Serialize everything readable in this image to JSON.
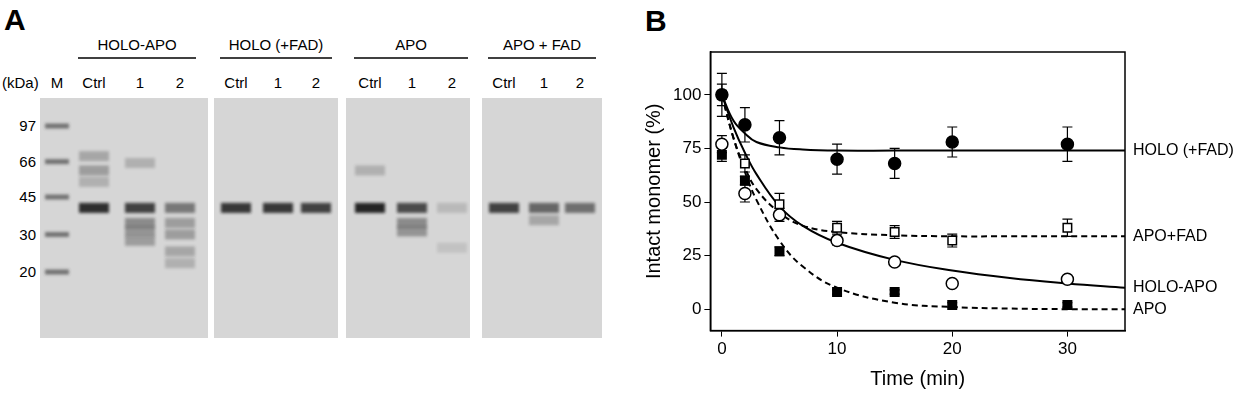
{
  "panel_a": {
    "label": "A",
    "unit_label": "(kDa)",
    "marker_label": "M",
    "marker_kda": [
      97,
      66,
      45,
      30,
      20
    ],
    "gels": [
      {
        "title": "HOLO-APO",
        "lanes": [
          {
            "name": "Ctrl",
            "bands": [
              {
                "kda": 40,
                "intensity": 0.9
              },
              {
                "kda": 70,
                "intensity": 0.25
              },
              {
                "kda": 60,
                "intensity": 0.3
              },
              {
                "kda": 53,
                "intensity": 0.2
              }
            ]
          },
          {
            "name": "1",
            "bands": [
              {
                "kda": 40,
                "intensity": 0.8
              },
              {
                "kda": 34,
                "intensity": 0.4
              },
              {
                "kda": 31,
                "intensity": 0.35
              },
              {
                "kda": 28,
                "intensity": 0.3
              },
              {
                "kda": 65,
                "intensity": 0.2
              }
            ]
          },
          {
            "name": "2",
            "bands": [
              {
                "kda": 40,
                "intensity": 0.5
              },
              {
                "kda": 34,
                "intensity": 0.3
              },
              {
                "kda": 30,
                "intensity": 0.3
              },
              {
                "kda": 25,
                "intensity": 0.25
              },
              {
                "kda": 22,
                "intensity": 0.2
              }
            ]
          }
        ]
      },
      {
        "title": "HOLO (+FAD)",
        "lanes": [
          {
            "name": "Ctrl",
            "bands": [
              {
                "kda": 40,
                "intensity": 0.85
              }
            ]
          },
          {
            "name": "1",
            "bands": [
              {
                "kda": 40,
                "intensity": 0.85
              }
            ]
          },
          {
            "name": "2",
            "bands": [
              {
                "kda": 40,
                "intensity": 0.8
              }
            ]
          }
        ]
      },
      {
        "title": "APO",
        "lanes": [
          {
            "name": "Ctrl",
            "bands": [
              {
                "kda": 40,
                "intensity": 0.95
              },
              {
                "kda": 60,
                "intensity": 0.2
              }
            ]
          },
          {
            "name": "1",
            "bands": [
              {
                "kda": 40,
                "intensity": 0.75
              },
              {
                "kda": 34,
                "intensity": 0.4
              },
              {
                "kda": 31,
                "intensity": 0.35
              }
            ]
          },
          {
            "name": "2",
            "bands": [
              {
                "kda": 40,
                "intensity": 0.15
              },
              {
                "kda": 26,
                "intensity": 0.1
              }
            ]
          }
        ]
      },
      {
        "title": "APO + FAD",
        "lanes": [
          {
            "name": "Ctrl",
            "bands": [
              {
                "kda": 40,
                "intensity": 0.8
              }
            ]
          },
          {
            "name": "1",
            "bands": [
              {
                "kda": 40,
                "intensity": 0.6
              },
              {
                "kda": 35,
                "intensity": 0.25
              }
            ]
          },
          {
            "name": "2",
            "bands": [
              {
                "kda": 40,
                "intensity": 0.55
              }
            ]
          }
        ]
      }
    ]
  },
  "chart_data": {
    "label": "B",
    "type": "scatter",
    "x_label": "Time (min)",
    "y_label": "Intact monomer (%)",
    "xlim": [
      -1,
      35
    ],
    "xticks": [
      0,
      10,
      20,
      30
    ],
    "ylim": [
      -10,
      120
    ],
    "yticks": [
      0,
      25,
      50,
      75,
      100
    ],
    "grid": false,
    "x": [
      0,
      2,
      5,
      10,
      15,
      20,
      30
    ],
    "fit_x": [
      0,
      1,
      2,
      3,
      5,
      7,
      10,
      15,
      20,
      25,
      30,
      35
    ],
    "series": [
      {
        "name": "HOLO (+FAD)",
        "color": "#000000",
        "marker": "filled_circle",
        "line_style": "solid",
        "values": [
          100,
          86,
          80,
          70,
          68,
          78,
          77
        ],
        "errors": [
          10,
          8,
          8,
          7,
          7,
          7,
          8
        ],
        "fit_values": [
          100,
          88,
          82,
          78,
          75.5,
          74.5,
          74,
          74,
          74,
          74,
          74,
          74
        ]
      },
      {
        "name": "APO+FAD",
        "color": "#000000",
        "marker": "open_square",
        "line_style": "dashed",
        "values": [
          100,
          68,
          49,
          38,
          36,
          32,
          38
        ],
        "errors": [
          5,
          4,
          5,
          3,
          3,
          3,
          4
        ],
        "fit_values": [
          100,
          80,
          66,
          56,
          45,
          39,
          36,
          34.5,
          34,
          34,
          34,
          34
        ]
      },
      {
        "name": "HOLO-APO",
        "color": "#000000",
        "marker": "open_circle",
        "line_style": "solid",
        "values": [
          77,
          54,
          44,
          32,
          22,
          12,
          14
        ],
        "errors": [
          4,
          4,
          3,
          2,
          1,
          1,
          1
        ],
        "fit_values": [
          100,
          85,
          73,
          63,
          48,
          39,
          31,
          23,
          18,
          14.5,
          12,
          10
        ]
      },
      {
        "name": "APO",
        "color": "#000000",
        "marker": "filled_square",
        "line_style": "dashed",
        "values": [
          72,
          60,
          27,
          8,
          8,
          2,
          2
        ],
        "errors": [
          3,
          2,
          2,
          1,
          1,
          1,
          1
        ],
        "fit_values": [
          100,
          80,
          64,
          51,
          32,
          20,
          10,
          3,
          1,
          0.3,
          0,
          0
        ]
      }
    ]
  }
}
